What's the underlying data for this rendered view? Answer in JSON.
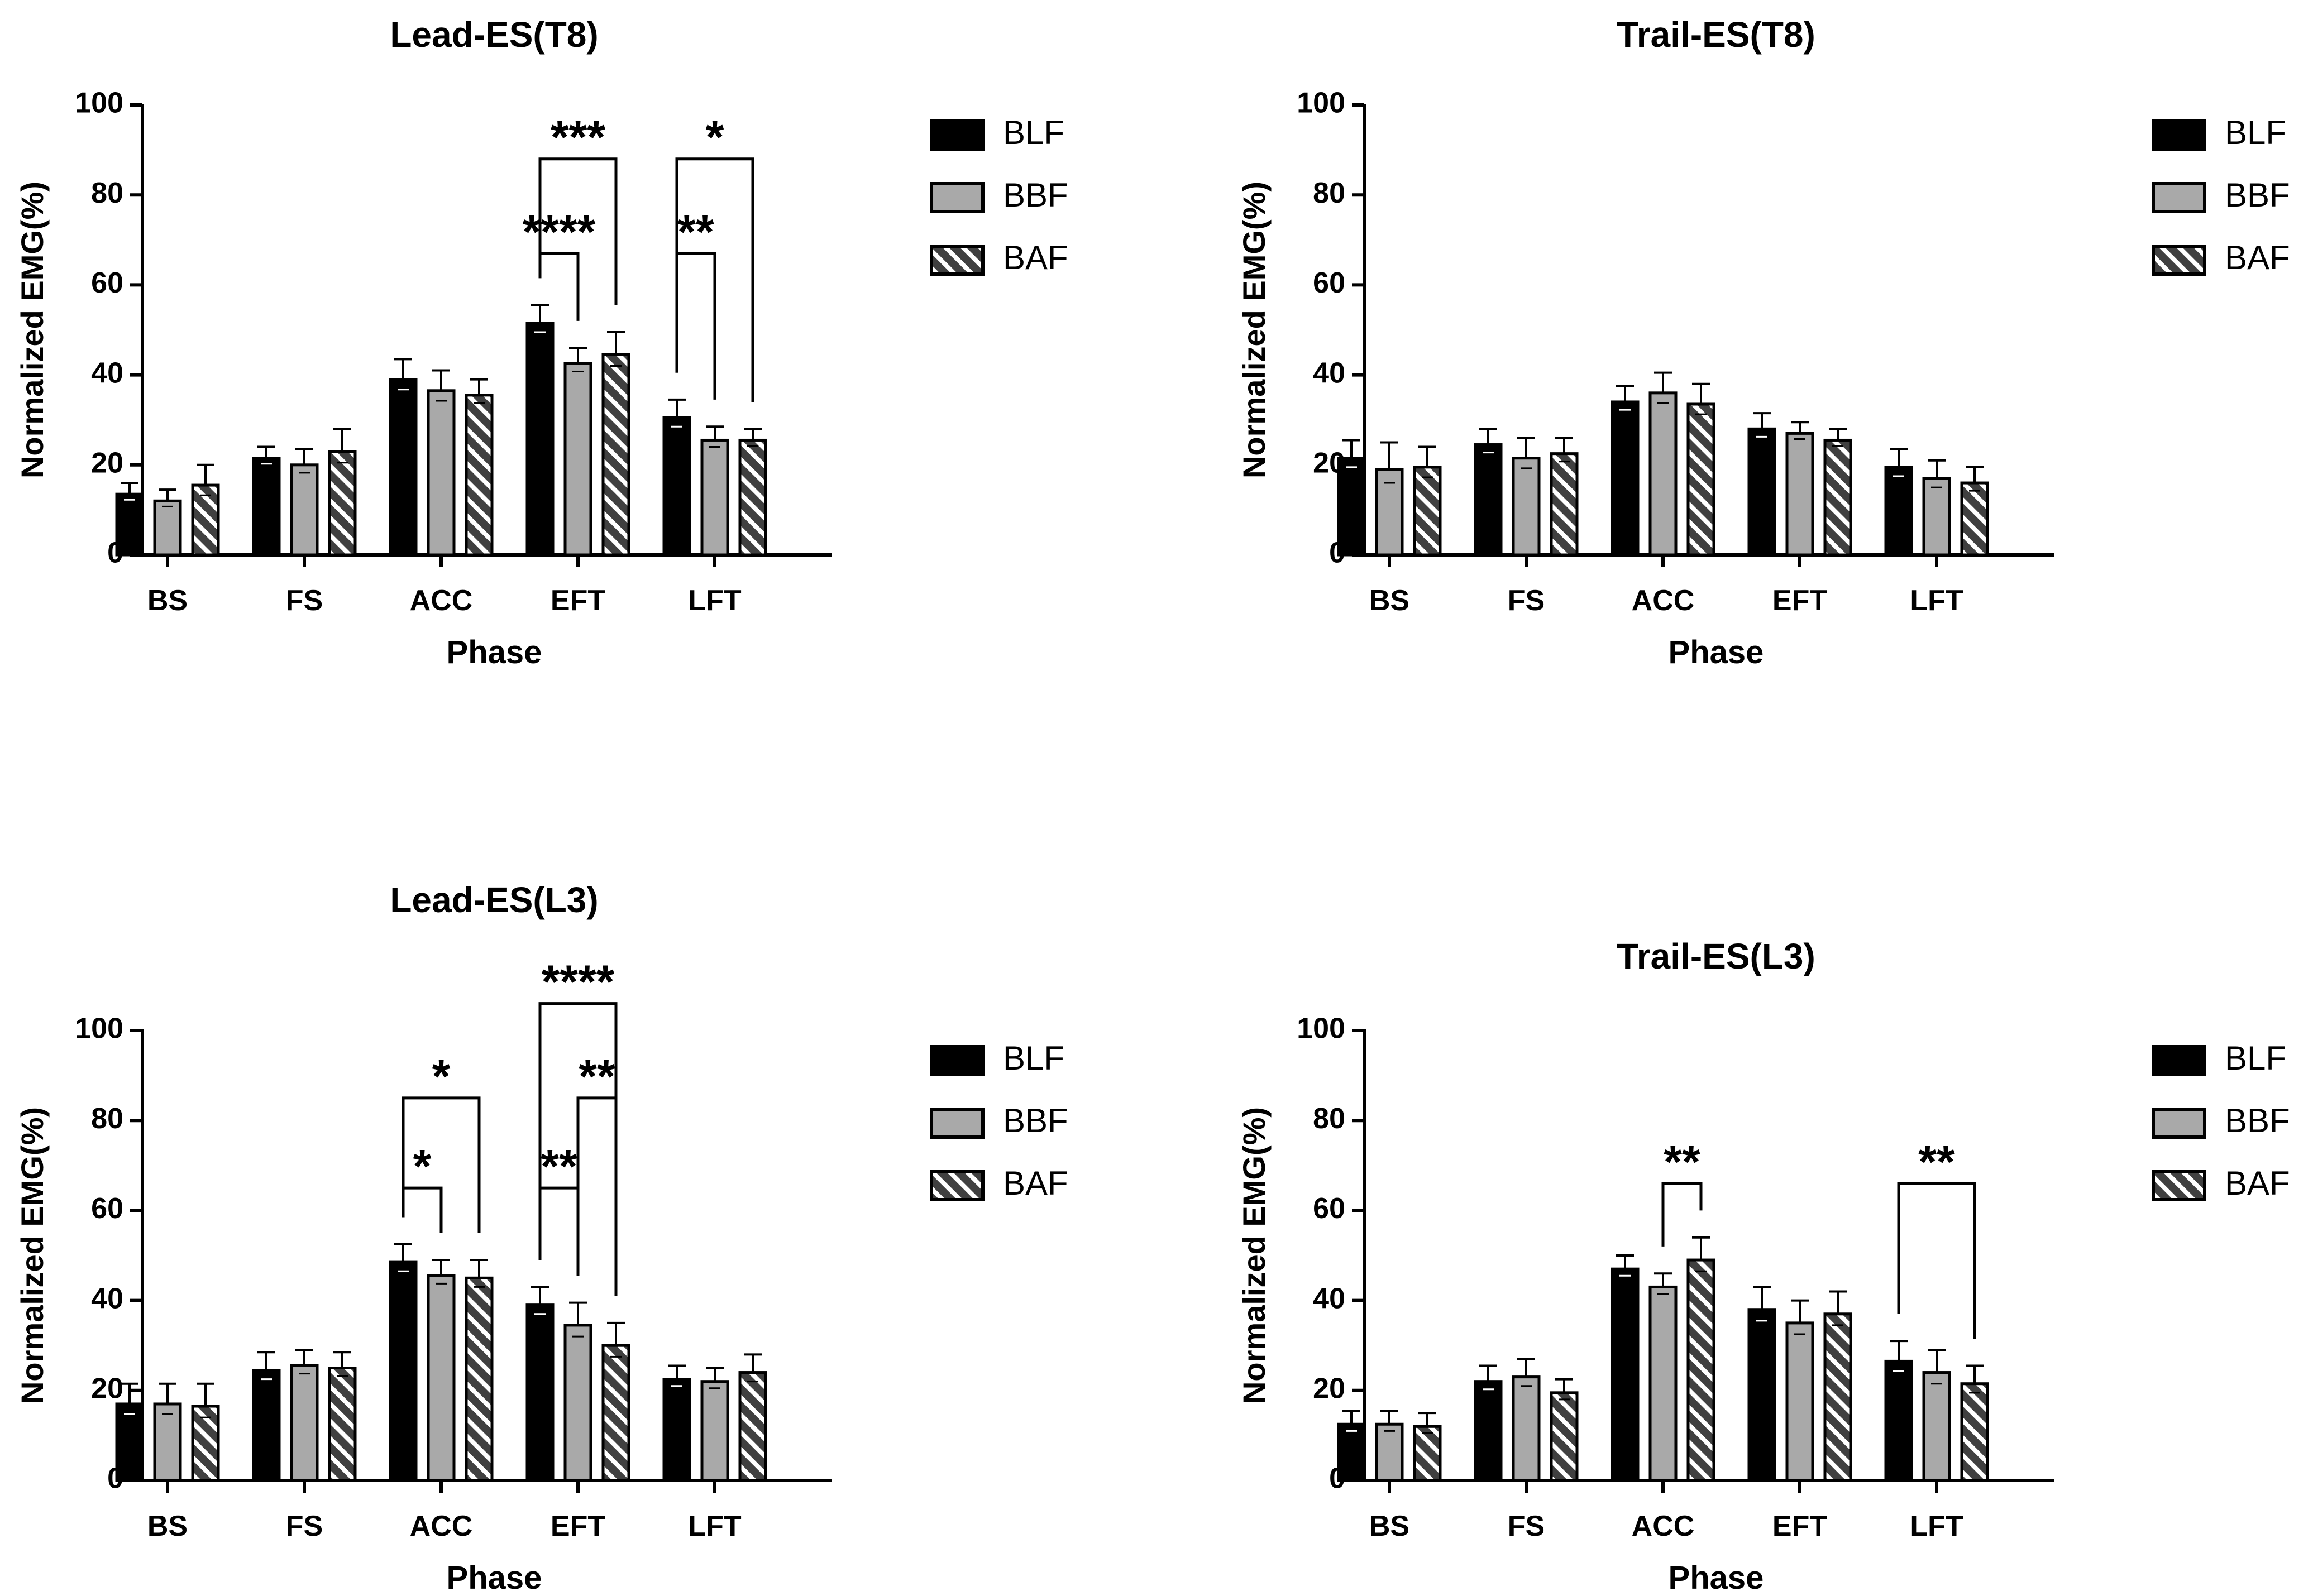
{
  "chart_data": [
    {
      "type": "bar",
      "title": "Lead-ES(T8)",
      "xlabel": "Phase",
      "ylabel": "Normalized EMG(%)",
      "ylim": [
        0,
        100
      ],
      "yticks": [
        0,
        20,
        40,
        60,
        80,
        100
      ],
      "categories": [
        "BS",
        "FS",
        "ACC",
        "EFT",
        "LFT"
      ],
      "series": [
        {
          "name": "BLF",
          "fill": "solid",
          "values": [
            13.5,
            21.5,
            39,
            51.5,
            30.5
          ],
          "errors": [
            2.5,
            2.5,
            4.5,
            4,
            4
          ]
        },
        {
          "name": "BBF",
          "fill": "gray",
          "values": [
            12,
            20,
            36.5,
            42.5,
            25.5
          ],
          "errors": [
            2.5,
            3.5,
            4.5,
            3.5,
            3
          ]
        },
        {
          "name": "BAF",
          "fill": "hatched",
          "values": [
            15.5,
            23,
            35.5,
            44.5,
            25.5
          ],
          "errors": [
            4.5,
            5,
            3.5,
            5,
            2.5
          ]
        }
      ],
      "legend": [
        "BLF",
        "BBF",
        "BAF"
      ],
      "significance": [
        {
          "category": "EFT",
          "from": 0,
          "to": 1,
          "label": "****",
          "y": 67
        },
        {
          "category": "EFT",
          "from": 0,
          "to": 2,
          "label": "***",
          "y": 88
        },
        {
          "category": "LFT",
          "from": 0,
          "to": 1,
          "label": "**",
          "y": 67
        },
        {
          "category": "LFT",
          "from": 0,
          "to": 2,
          "label": "*",
          "y": 88
        }
      ]
    },
    {
      "type": "bar",
      "title": "Trail-ES(T8)",
      "xlabel": "Phase",
      "ylabel": "Normalized EMG(%)",
      "ylim": [
        0,
        100
      ],
      "yticks": [
        0,
        20,
        40,
        60,
        80,
        100
      ],
      "categories": [
        "BS",
        "FS",
        "ACC",
        "EFT",
        "LFT"
      ],
      "series": [
        {
          "name": "BLF",
          "fill": "solid",
          "values": [
            21.5,
            24.5,
            34,
            28,
            19.5
          ],
          "errors": [
            4,
            3.5,
            3.5,
            3.5,
            4
          ]
        },
        {
          "name": "BBF",
          "fill": "gray",
          "values": [
            19,
            21.5,
            36,
            27,
            17
          ],
          "errors": [
            6,
            4.5,
            4.5,
            2.5,
            4
          ]
        },
        {
          "name": "BAF",
          "fill": "hatched",
          "values": [
            19.5,
            22.5,
            33.5,
            25.5,
            16
          ],
          "errors": [
            4.5,
            3.5,
            4.5,
            2.5,
            3.5
          ]
        }
      ],
      "legend": [
        "BLF",
        "BBF",
        "BAF"
      ],
      "significance": []
    },
    {
      "type": "bar",
      "title": "Lead-ES(L3)",
      "xlabel": "Phase",
      "ylabel": "Normalized EMG(%)",
      "ylim": [
        0,
        100
      ],
      "yticks": [
        0,
        20,
        40,
        60,
        80,
        100
      ],
      "categories": [
        "BS",
        "FS",
        "ACC",
        "EFT",
        "LFT"
      ],
      "series": [
        {
          "name": "BLF",
          "fill": "solid",
          "values": [
            17,
            24.5,
            48.5,
            39,
            22.5
          ],
          "errors": [
            4.5,
            4,
            4,
            4,
            3
          ]
        },
        {
          "name": "BBF",
          "fill": "gray",
          "values": [
            17,
            25.5,
            45.5,
            34.5,
            22
          ],
          "errors": [
            4.5,
            3.5,
            3.5,
            5,
            3
          ]
        },
        {
          "name": "BAF",
          "fill": "hatched",
          "values": [
            16.5,
            25,
            45,
            30,
            24
          ],
          "errors": [
            5,
            3.5,
            4,
            5,
            4
          ]
        }
      ],
      "legend": [
        "BLF",
        "BBF",
        "BAF"
      ],
      "significance": [
        {
          "category": "ACC",
          "from": 0,
          "to": 1,
          "label": "*",
          "y": 65
        },
        {
          "category": "ACC",
          "from": 0,
          "to": 2,
          "label": "*",
          "y": 85
        },
        {
          "category": "EFT",
          "from": 0,
          "to": 1,
          "label": "**",
          "y": 65
        },
        {
          "category": "EFT",
          "from": 1,
          "to": 2,
          "label": "**",
          "y": 85
        },
        {
          "category": "EFT",
          "from": 0,
          "to": 2,
          "label": "****",
          "y": 106
        }
      ]
    },
    {
      "type": "bar",
      "title": "Trail-ES(L3)",
      "xlabel": "Phase",
      "ylabel": "Normalized EMG(%)",
      "ylim": [
        0,
        100
      ],
      "yticks": [
        0,
        20,
        40,
        60,
        80,
        100
      ],
      "categories": [
        "BS",
        "FS",
        "ACC",
        "EFT",
        "LFT"
      ],
      "series": [
        {
          "name": "BLF",
          "fill": "solid",
          "values": [
            12.5,
            22,
            47,
            38,
            26.5
          ],
          "errors": [
            3,
            3.5,
            3,
            5,
            4.5
          ]
        },
        {
          "name": "BBF",
          "fill": "gray",
          "values": [
            12.5,
            23,
            43,
            35,
            24
          ],
          "errors": [
            3,
            4,
            3,
            5,
            5
          ]
        },
        {
          "name": "BAF",
          "fill": "hatched",
          "values": [
            12,
            19.5,
            49,
            37,
            21.5
          ],
          "errors": [
            3,
            3,
            5,
            5,
            4
          ]
        }
      ],
      "legend": [
        "BLF",
        "BBF",
        "BAF"
      ],
      "significance": [
        {
          "category": "ACC",
          "from": 1,
          "to": 2,
          "label": "**",
          "y": 66
        },
        {
          "category": "LFT",
          "from": 0,
          "to": 2,
          "label": "**",
          "y": 66
        }
      ]
    }
  ],
  "colors": {
    "solid": "#000000",
    "gray": "#a9a9a9",
    "hatch": "#ffffff",
    "axis": "#000000"
  }
}
